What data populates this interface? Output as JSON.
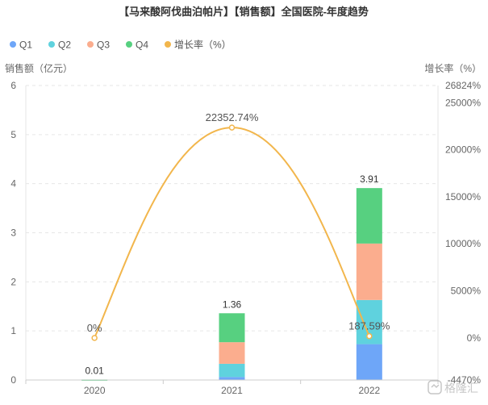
{
  "title": "【马来酸阿伐曲泊帕片】【销售额】全国医院-年度趋势",
  "colors": {
    "q1": "#6ea6f8",
    "q2": "#5fd2de",
    "q3": "#fbad8e",
    "q4": "#57d080",
    "growth": "#f2b64c",
    "axis_text": "#666666",
    "grid": "#e6e6e6",
    "axis_line": "#cccccc"
  },
  "watermark": "格隆汇",
  "chart_data": {
    "type": "bar",
    "stacked": true,
    "categories": [
      "2020",
      "2021",
      "2022"
    ],
    "series": [
      {
        "name": "Q1",
        "values": [
          0.0,
          0.06,
          0.73
        ],
        "color_key": "q1"
      },
      {
        "name": "Q2",
        "values": [
          0.0,
          0.27,
          0.9
        ],
        "color_key": "q2"
      },
      {
        "name": "Q3",
        "values": [
          0.0,
          0.44,
          1.15
        ],
        "color_key": "q3"
      },
      {
        "name": "Q4",
        "values": [
          0.01,
          0.59,
          1.13
        ],
        "color_key": "q4"
      }
    ],
    "totals": [
      0.01,
      1.36,
      3.91
    ],
    "total_labels": [
      "0.01",
      "1.36",
      "3.91"
    ],
    "growth": {
      "name": "增长率（%）",
      "values": [
        0,
        22352.74,
        187.59
      ],
      "labels": [
        "0%",
        "22352.74%",
        "187.59%"
      ],
      "color_key": "growth"
    },
    "ylabel": "销售额（亿元）",
    "ylabel_right": "增长率（%）",
    "ylim": [
      0,
      6
    ],
    "yticks": [
      "0",
      "1",
      "2",
      "3",
      "4",
      "5",
      "6"
    ],
    "ylim_right": [
      -4470,
      26824
    ],
    "yticks_right": [
      "-4470%",
      "0%",
      "5000%",
      "10000%",
      "15000%",
      "20000%",
      "25000%",
      "26824%"
    ],
    "grid": true,
    "legend_position": "top-left"
  }
}
